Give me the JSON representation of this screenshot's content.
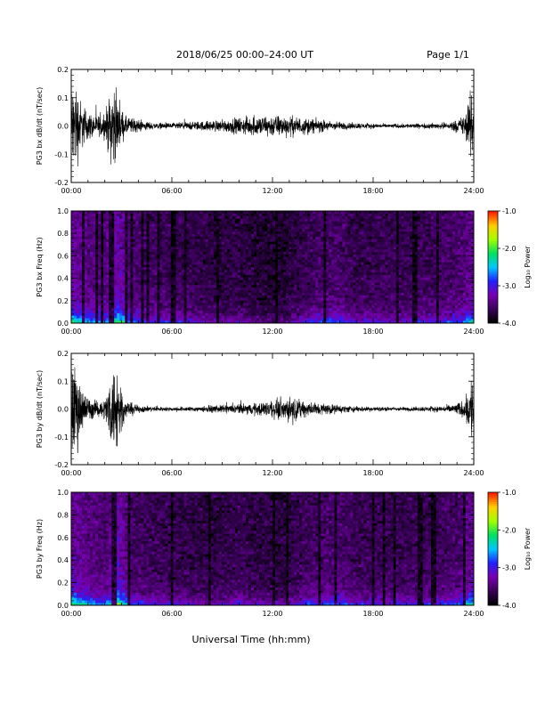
{
  "header": {
    "title": "2018/06/25  00:00–24:00 UT",
    "page": "Page 1/1"
  },
  "footer": {
    "xlabel": "Universal Time (hh:mm)"
  },
  "colorbar": {
    "label": "Log₁₀ Power",
    "ticks": [
      "-1.0",
      "-2.0",
      "-3.0",
      "-4.0"
    ],
    "range": [
      -4.0,
      -1.0
    ],
    "colors": [
      "#000000",
      "#3a005a",
      "#7a00b0",
      "#2020ff",
      "#00c8ff",
      "#00e060",
      "#a0ff00",
      "#ffd000",
      "#ff2000"
    ]
  },
  "chart_data": [
    {
      "type": "line",
      "ylabel": "PG3 bx dB/dt (nT/sec)",
      "xlim": [
        0,
        24
      ],
      "ylim": [
        -0.2,
        0.2
      ],
      "xticks": [
        "00:00",
        "06:00",
        "12:00",
        "18:00",
        "24:00"
      ],
      "yticks": [
        "0.2",
        "0.1",
        "0.0",
        "-0.1",
        "-0.2"
      ],
      "envelope": {
        "hours": [
          0,
          0.3,
          0.6,
          1,
          1.5,
          2,
          2.5,
          2.8,
          3.2,
          4,
          5,
          6,
          7,
          8,
          9,
          10,
          11,
          12,
          13,
          14,
          15,
          16,
          17,
          18,
          19,
          20,
          21,
          22,
          22.5,
          23,
          23.5,
          24
        ],
        "amplitude": [
          0.22,
          0.22,
          0.12,
          0.07,
          0.05,
          0.06,
          0.22,
          0.12,
          0.05,
          0.03,
          0.015,
          0.015,
          0.02,
          0.025,
          0.03,
          0.04,
          0.05,
          0.055,
          0.05,
          0.04,
          0.03,
          0.02,
          0.015,
          0.012,
          0.01,
          0.012,
          0.012,
          0.015,
          0.02,
          0.03,
          0.06,
          0.22
        ]
      }
    },
    {
      "type": "heatmap",
      "ylabel": "PG3 bx Freq (Hz)",
      "xlim": [
        0,
        24
      ],
      "ylim": [
        0.0,
        1.0
      ],
      "xticks": [
        "00:00",
        "06:00",
        "12:00",
        "18:00",
        "24:00"
      ],
      "yticks": [
        "1.0",
        "0.8",
        "0.6",
        "0.4",
        "0.2",
        "0.0"
      ],
      "zlabel": "Log₁₀ Power",
      "zlim": [
        -4.0,
        -1.0
      ],
      "activity": {
        "hours": [
          0,
          1,
          2,
          2.8,
          3.5,
          5,
          7,
          8.5,
          10,
          11.5,
          12.5,
          14,
          15,
          16,
          17,
          18,
          20,
          22,
          23,
          24
        ],
        "level": [
          0.9,
          0.7,
          0.65,
          0.95,
          0.6,
          0.5,
          0.45,
          0.35,
          0.35,
          0.25,
          0.25,
          0.45,
          0.55,
          0.55,
          0.4,
          0.45,
          0.45,
          0.5,
          0.55,
          0.8
        ]
      }
    },
    {
      "type": "line",
      "ylabel": "PG3 by dB/dt (nT/sec)",
      "xlim": [
        0,
        24
      ],
      "ylim": [
        -0.2,
        0.2
      ],
      "xticks": [
        "00:00",
        "06:00",
        "12:00",
        "18:00",
        "24:00"
      ],
      "yticks": [
        "0.2",
        "0.1",
        "0.0",
        "-0.1",
        "-0.2"
      ],
      "envelope": {
        "hours": [
          0,
          0.3,
          0.6,
          1,
          1.5,
          2,
          2.5,
          2.8,
          3.2,
          4,
          5,
          6,
          7,
          8,
          9,
          10,
          11,
          12,
          13,
          14,
          15,
          16,
          17,
          18,
          19,
          20,
          21,
          22,
          22.5,
          23,
          23.5,
          24
        ],
        "amplitude": [
          0.22,
          0.22,
          0.12,
          0.06,
          0.04,
          0.05,
          0.22,
          0.22,
          0.04,
          0.02,
          0.012,
          0.01,
          0.012,
          0.015,
          0.02,
          0.025,
          0.03,
          0.045,
          0.06,
          0.04,
          0.03,
          0.02,
          0.015,
          0.012,
          0.01,
          0.01,
          0.012,
          0.015,
          0.02,
          0.03,
          0.05,
          0.22
        ]
      }
    },
    {
      "type": "heatmap",
      "ylabel": "PG3 by Freq (Hz)",
      "xlim": [
        0,
        24
      ],
      "ylim": [
        0.0,
        1.0
      ],
      "xticks": [
        "00:00",
        "06:00",
        "12:00",
        "18:00",
        "24:00"
      ],
      "yticks": [
        "1.0",
        "0.8",
        "0.6",
        "0.4",
        "0.2",
        "0.0"
      ],
      "zlabel": "Log₁₀ Power",
      "zlim": [
        -4.0,
        -1.0
      ],
      "activity": {
        "hours": [
          0,
          1,
          2,
          2.8,
          3.5,
          5,
          7,
          8.5,
          10,
          11.5,
          12.5,
          14,
          15,
          16,
          17,
          18,
          20,
          22,
          23,
          24
        ],
        "level": [
          0.9,
          0.7,
          0.6,
          1.0,
          0.55,
          0.45,
          0.4,
          0.35,
          0.45,
          0.35,
          0.3,
          0.5,
          0.55,
          0.6,
          0.45,
          0.45,
          0.45,
          0.5,
          0.55,
          0.85
        ]
      }
    }
  ]
}
